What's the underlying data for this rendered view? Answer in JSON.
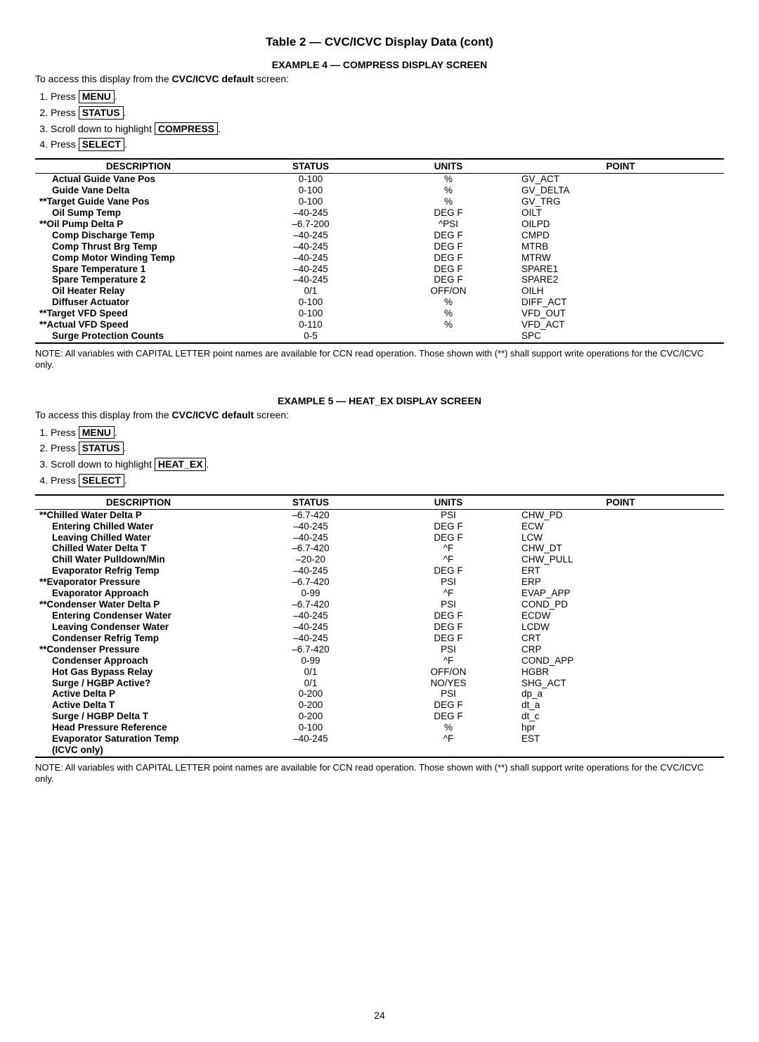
{
  "title": "Table 2 — CVC/ICVC Display Data (cont)",
  "page_number": "24",
  "note": "NOTE: All variables with CAPITAL LETTER point names are available for CCN read operation. Those shown with (**) shall support write operations for the CVC/ICVC only.",
  "intro_prefix": "To access this display from the ",
  "intro_bold": "CVC/ICVC default",
  "intro_suffix": " screen:",
  "step_press": "Press ",
  "step_scroll": "Scroll down to highlight ",
  "step_period": ".",
  "btn_menu": "MENU",
  "btn_status": "STATUS",
  "btn_select": "SELECT",
  "headers": {
    "description": "DESCRIPTION",
    "status": "STATUS",
    "units": "UNITS",
    "point": "POINT"
  },
  "example4": {
    "title": "EXAMPLE 4 — COMPRESS DISPLAY SCREEN",
    "highlight_btn": "COMPRESS",
    "rows": [
      {
        "stars": false,
        "desc": "Actual Guide Vane Pos",
        "status": "0-100",
        "units": "%",
        "point": "GV_ACT"
      },
      {
        "stars": false,
        "desc": "Guide Vane Delta",
        "status": "0-100",
        "units": "%",
        "point": "GV_DELTA"
      },
      {
        "stars": true,
        "desc": "Target Guide Vane Pos",
        "status": "0-100",
        "units": "%",
        "point": "GV_TRG"
      },
      {
        "stars": false,
        "desc": "Oil Sump Temp",
        "status": "–40-245",
        "units": "DEG F",
        "point": "OILT"
      },
      {
        "stars": true,
        "desc": "Oil Pump Delta P",
        "status": "–6.7-200",
        "units": "^PSI",
        "point": "OILPD"
      },
      {
        "stars": false,
        "desc": "Comp Discharge Temp",
        "status": "–40-245",
        "units": "DEG F",
        "point": "CMPD"
      },
      {
        "stars": false,
        "desc": "Comp Thrust Brg Temp",
        "status": "–40-245",
        "units": "DEG F",
        "point": "MTRB"
      },
      {
        "stars": false,
        "desc": "Comp Motor Winding Temp",
        "status": "–40-245",
        "units": "DEG F",
        "point": "MTRW"
      },
      {
        "stars": false,
        "desc": "Spare Temperature 1",
        "status": "–40-245",
        "units": "DEG F",
        "point": "SPARE1"
      },
      {
        "stars": false,
        "desc": "Spare Temperature 2",
        "status": "–40-245",
        "units": "DEG F",
        "point": "SPARE2"
      },
      {
        "stars": false,
        "desc": "Oil Heater Relay",
        "status": "0/1",
        "units": "OFF/ON",
        "point": "OILH"
      },
      {
        "stars": false,
        "desc": "Diffuser Actuator",
        "status": "0-100",
        "units": "%",
        "point": "DIFF_ACT"
      },
      {
        "stars": true,
        "desc": "Target VFD Speed",
        "status": "0-100",
        "units": "%",
        "point": "VFD_OUT"
      },
      {
        "stars": true,
        "desc": "Actual VFD Speed",
        "status": "0-110",
        "units": "%",
        "point": "VFD_ACT"
      },
      {
        "stars": false,
        "desc": "Surge Protection Counts",
        "status": "0-5",
        "units": "",
        "point": "SPC"
      }
    ]
  },
  "example5": {
    "title": "EXAMPLE 5 — HEAT_EX DISPLAY SCREEN",
    "highlight_btn": "HEAT_EX",
    "rows": [
      {
        "stars": true,
        "desc": "Chilled Water Delta P",
        "status": "–6.7-420",
        "units": "PSI",
        "point": "CHW_PD"
      },
      {
        "stars": false,
        "desc": "Entering Chilled Water",
        "status": "–40-245",
        "units": "DEG F",
        "point": "ECW"
      },
      {
        "stars": false,
        "desc": "Leaving Chilled Water",
        "status": "–40-245",
        "units": "DEG F",
        "point": "LCW"
      },
      {
        "stars": false,
        "desc": "Chilled Water Delta T",
        "status": "–6.7-420",
        "units": "^F",
        "point": "CHW_DT"
      },
      {
        "stars": false,
        "desc": "Chill Water Pulldown/Min",
        "status": "–20-20",
        "units": "^F",
        "point": "CHW_PULL"
      },
      {
        "stars": false,
        "desc": "Evaporator Refrig Temp",
        "status": "–40-245",
        "units": "DEG F",
        "point": "ERT"
      },
      {
        "stars": true,
        "desc": "Evaporator Pressure",
        "status": "–6.7-420",
        "units": "PSI",
        "point": "ERP"
      },
      {
        "stars": false,
        "desc": "Evaporator Approach",
        "status": "0-99",
        "units": "^F",
        "point": "EVAP_APP"
      },
      {
        "stars": true,
        "desc": "Condenser Water Delta P",
        "status": "–6.7-420",
        "units": "PSI",
        "point": "COND_PD"
      },
      {
        "stars": false,
        "desc": "Entering Condenser Water",
        "status": "–40-245",
        "units": "DEG F",
        "point": "ECDW"
      },
      {
        "stars": false,
        "desc": "Leaving Condenser Water",
        "status": "–40-245",
        "units": "DEG F",
        "point": "LCDW"
      },
      {
        "stars": false,
        "desc": "Condenser Refrig Temp",
        "status": "–40-245",
        "units": "DEG F",
        "point": "CRT"
      },
      {
        "stars": true,
        "desc": "Condenser Pressure",
        "status": "–6.7-420",
        "units": "PSI",
        "point": "CRP"
      },
      {
        "stars": false,
        "desc": "Condenser Approach",
        "status": "0-99",
        "units": "^F",
        "point": "COND_APP"
      },
      {
        "stars": false,
        "desc": "Hot Gas Bypass Relay",
        "status": "0/1",
        "units": "OFF/ON",
        "point": "HGBR"
      },
      {
        "stars": false,
        "desc": "Surge / HGBP Active?",
        "status": "0/1",
        "units": "NO/YES",
        "point": "SHG_ACT"
      },
      {
        "stars": false,
        "desc": "Active Delta P",
        "status": "0-200",
        "units": "PSI",
        "point": "dp_a"
      },
      {
        "stars": false,
        "desc": "Active Delta T",
        "status": "0-200",
        "units": "DEG F",
        "point": "dt_a"
      },
      {
        "stars": false,
        "desc": "Surge / HGBP Delta T",
        "status": "0-200",
        "units": "DEG F",
        "point": "dt_c"
      },
      {
        "stars": false,
        "desc": "Head Pressure Reference",
        "status": "0-100",
        "units": "%",
        "point": "hpr"
      },
      {
        "stars": false,
        "desc": "Evaporator Saturation Temp",
        "status": "–40-245",
        "units": "^F",
        "point": "EST",
        "tail": "(ICVC only)"
      }
    ]
  }
}
